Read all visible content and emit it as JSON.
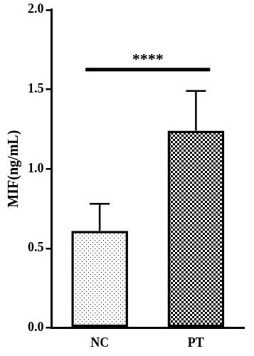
{
  "chart_data": {
    "type": "bar",
    "y_label": "MIF(ng/mL)",
    "categories": [
      "NC",
      "PT"
    ],
    "values": [
      0.61,
      1.24
    ],
    "errors": [
      0.17,
      0.25
    ],
    "color": "#000000",
    "ylim": [
      0,
      2
    ],
    "yticks": [
      {
        "value": 0,
        "label": "0.0"
      },
      0.5,
      {
        "value": 1,
        "label": "1.0"
      },
      1.5,
      {
        "value": 2,
        "label": "2.0"
      }
    ],
    "grid": false,
    "annotations": [
      {
        "text": "****",
        "between": [
          "NC",
          "PT"
        ]
      }
    ]
  }
}
